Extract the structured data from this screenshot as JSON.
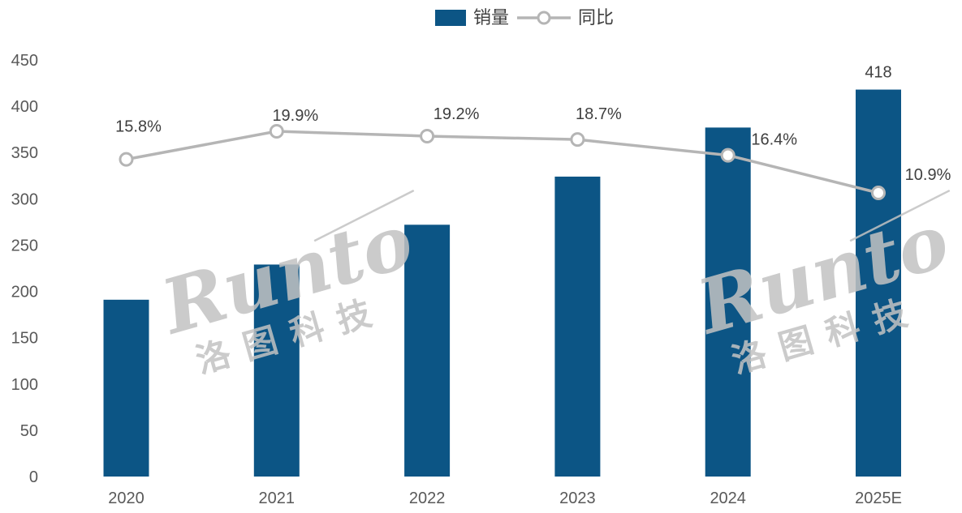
{
  "legend": {
    "items": [
      {
        "label": "销量",
        "swatch": "bar-swatch"
      },
      {
        "label": "同比",
        "swatch": "line-marker-swatch"
      }
    ]
  },
  "chart_data": {
    "type": "bar",
    "title": "",
    "categories": [
      "2020",
      "2021",
      "2022",
      "2023",
      "2024",
      "2025E"
    ],
    "series": [
      {
        "name": "销量",
        "type": "bar",
        "values": [
          191,
          229,
          272,
          324,
          377,
          418
        ],
        "value_labels": [
          null,
          null,
          null,
          null,
          null,
          "418"
        ],
        "color": "#0c5585"
      },
      {
        "name": "同比",
        "type": "line",
        "values_percent": [
          15.8,
          19.9,
          19.2,
          18.7,
          16.4,
          10.9
        ],
        "labels": [
          "15.8%",
          "19.9%",
          "19.2%",
          "18.7%",
          "16.4%",
          "10.9%"
        ],
        "color": "#b5b5b5",
        "marker": "open-circle"
      }
    ],
    "y_axis": {
      "ticks": [
        0,
        50,
        100,
        150,
        200,
        250,
        300,
        350,
        400,
        450
      ],
      "range": [
        0,
        450
      ]
    },
    "legend_position": "top",
    "gridlines": false
  },
  "watermark": {
    "brand": "Runto",
    "company": "洛图科技"
  },
  "colors": {
    "bar": "#0c5585",
    "line": "#b5b5b5",
    "marker_fill": "#ffffff",
    "axis_text": "#595959",
    "label_text": "#3f3f3f",
    "watermark": "#c3c3c3"
  }
}
